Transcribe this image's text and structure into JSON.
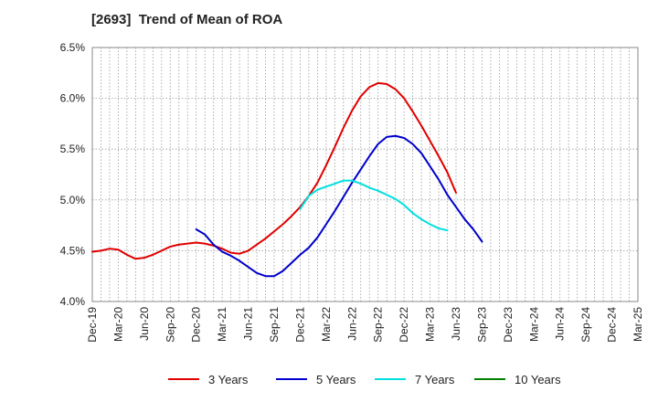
{
  "chart_data": {
    "type": "line",
    "title": "[2693]  Trend of Mean of ROA",
    "xlabel": "",
    "ylabel": "",
    "ylim": [
      4.0,
      6.5
    ],
    "y_ticks": [
      "4.0%",
      "4.5%",
      "5.0%",
      "5.5%",
      "6.0%",
      "6.5%"
    ],
    "y_tick_values": [
      4.0,
      4.5,
      5.0,
      5.5,
      6.0,
      6.5
    ],
    "x_ticks": [
      "Dec-19",
      "Mar-20",
      "Jun-20",
      "Sep-20",
      "Dec-20",
      "Mar-21",
      "Jun-21",
      "Sep-21",
      "Dec-21",
      "Mar-22",
      "Jun-22",
      "Sep-22",
      "Dec-22",
      "Mar-23",
      "Jun-23",
      "Sep-23",
      "Dec-23",
      "Mar-24",
      "Jun-24",
      "Sep-24",
      "Dec-24",
      "Mar-25"
    ],
    "grid": true,
    "legend_position": "bottom",
    "series": [
      {
        "name": "3 Years",
        "color": "#e00000",
        "start_index": 0,
        "values": [
          4.49,
          4.5,
          4.52,
          4.51,
          4.46,
          4.42,
          4.43,
          4.46,
          4.5,
          4.54,
          4.56,
          4.57,
          4.58,
          4.57,
          4.55,
          4.52,
          4.48,
          4.47,
          4.5,
          4.56,
          4.62,
          4.69,
          4.76,
          4.84,
          4.93,
          5.04,
          5.17,
          5.34,
          5.52,
          5.71,
          5.88,
          6.02,
          6.11,
          6.15,
          6.14,
          6.09,
          6.0,
          5.87,
          5.73,
          5.58,
          5.43,
          5.27,
          5.07
        ]
      },
      {
        "name": "5 Years",
        "color": "#0000cc",
        "start_index": 12,
        "values": [
          4.71,
          4.66,
          4.56,
          4.49,
          4.45,
          4.4,
          4.34,
          4.28,
          4.25,
          4.25,
          4.3,
          4.38,
          4.46,
          4.53,
          4.63,
          4.76,
          4.89,
          5.03,
          5.17,
          5.3,
          5.43,
          5.55,
          5.62,
          5.63,
          5.61,
          5.55,
          5.46,
          5.33,
          5.2,
          5.05,
          4.93,
          4.81,
          4.71,
          4.59
        ]
      },
      {
        "name": "7 Years",
        "color": "#00e0e0",
        "start_index": 24,
        "values": [
          4.91,
          5.04,
          5.1,
          5.13,
          5.16,
          5.19,
          5.19,
          5.16,
          5.12,
          5.09,
          5.05,
          5.01,
          4.95,
          4.87,
          4.81,
          4.76,
          4.72,
          4.7
        ]
      },
      {
        "name": "10 Years",
        "color": "#008000",
        "start_index": 0,
        "values": []
      }
    ]
  }
}
